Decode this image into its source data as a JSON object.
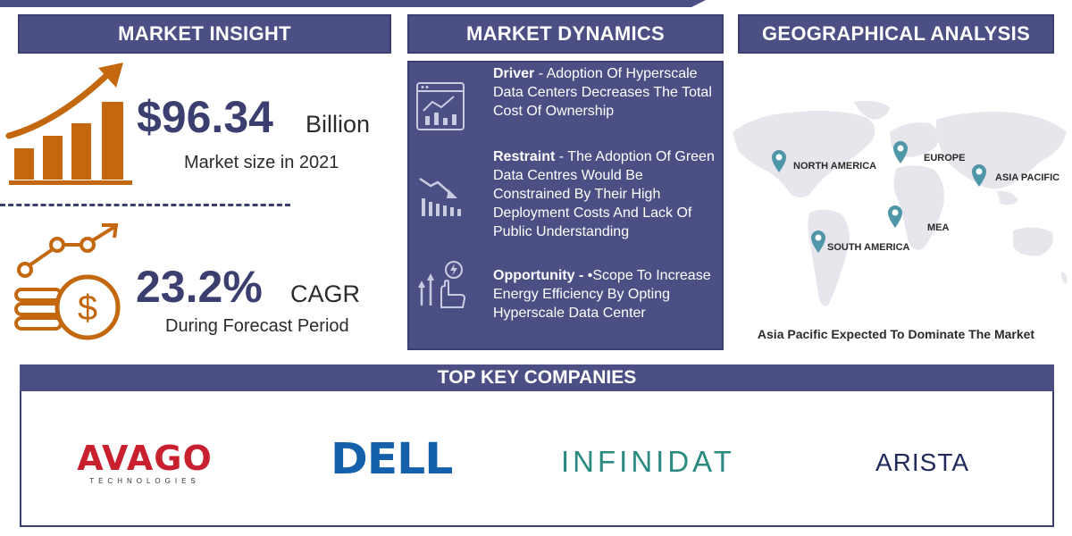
{
  "headers": {
    "insight": "MARKET INSIGHT",
    "dynamics": "MARKET DYNAMICS",
    "geo": "GEOGRAPHICAL ANALYSIS",
    "companies": "TOP KEY COMPANIES"
  },
  "insight": {
    "market_size": {
      "value": "$96.34",
      "unit": "Billion",
      "caption": "Market size in 2021"
    },
    "cagr": {
      "value": "23.2%",
      "unit": "CAGR",
      "caption": "During Forecast Period"
    }
  },
  "dynamics": [
    {
      "label": "Driver",
      "text": " - Adoption Of Hyperscale Data Centers Decreases The Total Cost Of Ownership"
    },
    {
      "label": "Restraint",
      "text": " - The Adoption Of Green Data Centres Would Be Constrained By Their High Deployment Costs And Lack Of Public Understanding"
    },
    {
      "label": "Opportunity -",
      "text": " •Scope To Increase Energy Efficiency By Opting Hyperscale Data Center"
    }
  ],
  "geo": {
    "regions": [
      "NORTH AMERICA",
      "EUROPE",
      "ASIA PACIFIC",
      "MEA",
      "SOUTH AMERICA"
    ],
    "caption": "Asia Pacific Expected To Dominate The Market"
  },
  "companies": {
    "avago": "AVAGO",
    "avago_sub": "TECHNOLOGIES",
    "dell": "DELL",
    "infinidat": "INFINIDAT",
    "arista": "ARISTA"
  },
  "colors": {
    "header": "#4b4f84",
    "accent_orange": "#c4680f",
    "avago_red": "#c8202f",
    "dell_blue": "#1460aa",
    "infinidat_teal": "#2a8a82",
    "arista_navy": "#1f2a5a"
  },
  "icons": [
    "growth-chart-icon",
    "coins-dollar-icon",
    "dashboard-chart-icon",
    "declining-chart-icon",
    "energy-opportunity-icon",
    "map-pin-icon"
  ]
}
